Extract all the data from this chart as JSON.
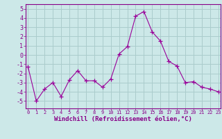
{
  "x": [
    0,
    1,
    2,
    3,
    4,
    5,
    6,
    7,
    8,
    9,
    10,
    11,
    12,
    13,
    14,
    15,
    16,
    17,
    18,
    19,
    20,
    21,
    22,
    23
  ],
  "y": [
    -1.3,
    -5.0,
    -3.7,
    -3.0,
    -4.5,
    -2.7,
    -1.7,
    -2.8,
    -2.8,
    -3.5,
    -2.6,
    0.1,
    0.9,
    4.2,
    4.7,
    2.5,
    1.5,
    -0.7,
    -1.2,
    -3.0,
    -2.9,
    -3.5,
    -3.7,
    -4.0
  ],
  "line_color": "#990099",
  "marker": "+",
  "marker_size": 4,
  "bg_color": "#cce8e8",
  "grid_color": "#aacccc",
  "axis_color": "#880088",
  "xlabel": "Windchill (Refroidissement éolien,°C)",
  "xlabel_fontsize": 6.5,
  "ylim": [
    -5.8,
    5.5
  ],
  "yticks": [
    -5,
    -4,
    -3,
    -2,
    -1,
    0,
    1,
    2,
    3,
    4,
    5
  ],
  "xticks": [
    0,
    1,
    2,
    3,
    4,
    5,
    6,
    7,
    8,
    9,
    10,
    11,
    12,
    13,
    14,
    15,
    16,
    17,
    18,
    19,
    20,
    21,
    22,
    23
  ],
  "xlim": [
    -0.3,
    23.3
  ]
}
